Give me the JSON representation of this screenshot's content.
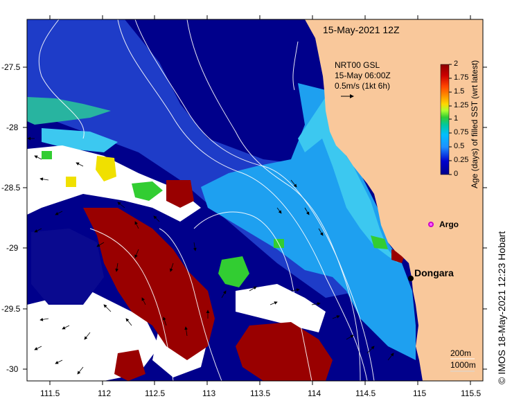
{
  "map": {
    "title": "15-May-2021 12Z",
    "info_lines": [
      "NRT00 GSL",
      "15-May 06:00Z",
      "0.5m/s (1kt 6h)"
    ],
    "lat_ticks": [
      "-27.5",
      "-28",
      "-28.5",
      "-29",
      "-29.5",
      "-30"
    ],
    "lon_ticks": [
      "111.5",
      "112",
      "112.5",
      "113",
      "113.5",
      "114",
      "114.5",
      "115",
      "115.5"
    ],
    "colorbar": {
      "title": "Age (days) of filled SST (wrt latest)",
      "ticks": [
        "2",
        "1.75",
        "1.5",
        "1.25",
        "1",
        "0.75",
        "0.5",
        "0.25",
        "0"
      ],
      "colors": [
        "#8b0000",
        "#cc0000",
        "#ff4500",
        "#ff8c00",
        "#ffd700",
        "#adff2f",
        "#32cd32",
        "#00c8a0",
        "#00bfff",
        "#1e90ff",
        "#0000cd",
        "#00008b"
      ]
    },
    "places": [
      {
        "name": "Dongara",
        "icon": "location-dot-icon"
      },
      {
        "name": "Argo",
        "icon": "argo-float-icon"
      }
    ],
    "depth_legend": [
      "200m",
      "1000m"
    ],
    "credit": "© IMOS 18-May-2021 12:23 Hobart",
    "colors": {
      "land": "#f9c89b",
      "deep_blue": "#00008b",
      "mid_blue": "#1e3cc8",
      "light_blue": "#1ea0f0",
      "cyan": "#3cc8f0",
      "teal": "#28b4a0",
      "green": "#32cd32",
      "yellow": "#f0e000",
      "dark_red": "#990000",
      "white": "#ffffff",
      "argo": "#cc00cc"
    }
  }
}
